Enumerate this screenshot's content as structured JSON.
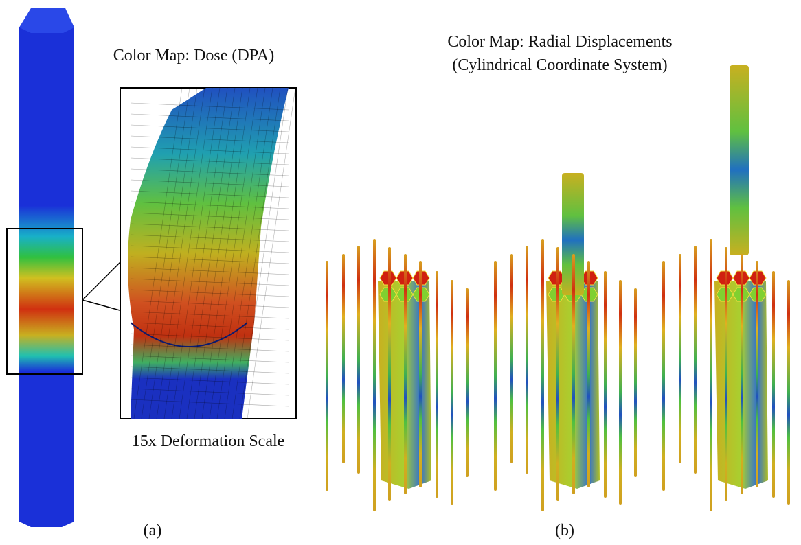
{
  "panel_a": {
    "title": "Color Map: Dose (DPA)",
    "caption": "15x Deformation Scale",
    "label": "(a)"
  },
  "panel_b": {
    "title_lines": [
      "Color Map: Radial Displacements",
      "(Cylindrical Coordinate System)"
    ],
    "label": "(b)"
  }
}
